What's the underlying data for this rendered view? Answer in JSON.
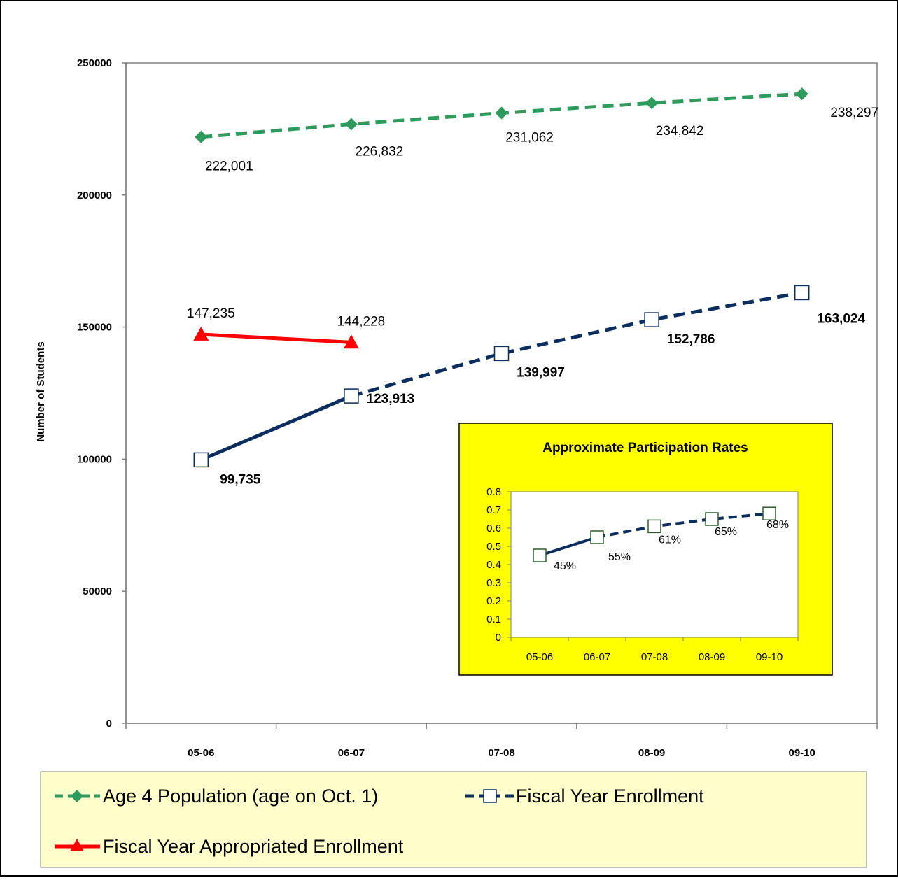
{
  "chart_data": [
    {
      "type": "line",
      "ylabel": "Number of Students",
      "ylim": [
        0,
        250000
      ],
      "yticks": [
        0,
        50000,
        100000,
        150000,
        200000,
        250000
      ],
      "ytick_labels": [
        "0",
        "50000",
        "100000",
        "150000",
        "200000",
        "250000"
      ],
      "categories": [
        "05-06",
        "06-07",
        "07-08",
        "08-09",
        "09-10"
      ],
      "grid": false,
      "legend_position": "bottom",
      "series": [
        {
          "name": "Age 4 Population (age on Oct. 1)",
          "values": [
            222001,
            226832,
            231062,
            234842,
            238297
          ],
          "labels": [
            "222,001",
            "226,832",
            "231,062",
            "234,842",
            "238,297"
          ],
          "color": "#2e9a5c",
          "line_style": "dashed",
          "marker": "diamond"
        },
        {
          "name": "Fiscal Year Enrollment",
          "values": [
            99735,
            123913,
            139997,
            152786,
            163024
          ],
          "labels": [
            "99,735",
            "123,913",
            "139,997",
            "152,786",
            "163,024"
          ],
          "color": "#0b2e5e",
          "line_style": "solid-then-dashed",
          "marker": "square-open"
        },
        {
          "name": "Fiscal Year Appropriated Enrollment",
          "values": [
            147235,
            144228,
            null,
            null,
            null
          ],
          "labels": [
            "147,235",
            "144,228",
            "",
            "",
            ""
          ],
          "color": "#ff0000",
          "line_style": "solid",
          "marker": "triangle"
        }
      ],
      "legend_background": "#ffffcc"
    },
    {
      "type": "line",
      "title": "Approximate Participation Rates",
      "ylim": [
        0,
        0.8
      ],
      "yticks": [
        0,
        0.1,
        0.2,
        0.3,
        0.4,
        0.5,
        0.6,
        0.7,
        0.8
      ],
      "ytick_labels": [
        "0",
        "0.1",
        "0.2",
        "0.3",
        "0.4",
        "0.5",
        "0.6",
        "0.7",
        "0.8"
      ],
      "categories": [
        "05-06",
        "06-07",
        "07-08",
        "08-09",
        "09-10"
      ],
      "series": [
        {
          "values": [
            0.45,
            0.55,
            0.61,
            0.65,
            0.68
          ],
          "labels": [
            "45%",
            "55%",
            "61%",
            "65%",
            "68%"
          ],
          "color": "#0b2e5e",
          "line_style": "solid-then-dashed",
          "marker": "square-open"
        }
      ],
      "background": "#ffff00",
      "legend_position": "none"
    }
  ]
}
